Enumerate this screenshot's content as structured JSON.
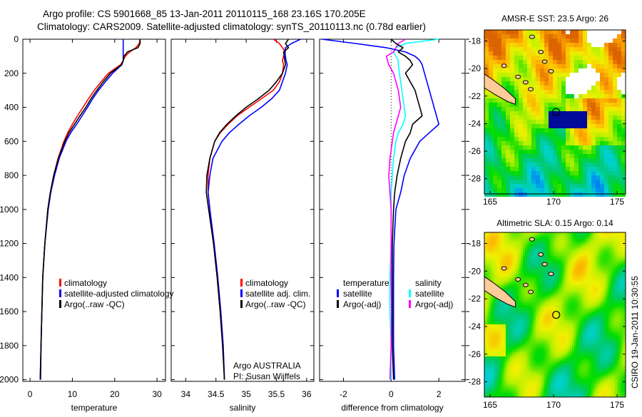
{
  "header": {
    "line1": "Argo profile: CS 5901668_85 13-Jan-2011 20110115_168 23.16S 170.205E",
    "line2": "Climatology: CARS2009. Satellite-adjusted climatology: synTS_20110113.nc (0.78d earlier)"
  },
  "footer_stamp": "CSIRO 19-Jan-2011 10:30:55",
  "colors": {
    "climatology": "#ff0000",
    "satellite": "#0000ff",
    "argo": "#000000",
    "sal_satellite": "#00ffff",
    "sal_argo": "#ff00ff"
  },
  "chart_data": [
    {
      "type": "line",
      "title": "",
      "xlabel": "temperature",
      "ylabel": "",
      "xlim": [
        -1.7,
        32
      ],
      "ylim": [
        2010,
        0
      ],
      "xticks": [
        "0",
        "10",
        "20",
        "30"
      ],
      "yticks": [
        "0",
        "200",
        "400",
        "600",
        "800",
        "1000",
        "1200",
        "1400",
        "1600",
        "1800",
        "2000"
      ],
      "depth": [
        0,
        25,
        50,
        75,
        100,
        125,
        150,
        200,
        250,
        300,
        350,
        400,
        450,
        500,
        550,
        600,
        700,
        800,
        900,
        1000,
        1200,
        1400,
        1600,
        1800,
        2000
      ],
      "series": [
        {
          "name": "climatology",
          "color": "#ff0000",
          "values": [
            26,
            25.8,
            25,
            23.5,
            22.5,
            22,
            21.4,
            18.5,
            16.8,
            15.2,
            13.8,
            12.5,
            11.2,
            10,
            8.9,
            8,
            6.6,
            5.6,
            4.8,
            4.2,
            3.5,
            3,
            2.8,
            2.6,
            2.4
          ]
        },
        {
          "name": "satellite-adjusted climatology",
          "color": "#0000ff",
          "values": [
            22,
            22,
            22,
            22,
            22,
            22,
            21.7,
            19.5,
            17.8,
            16.2,
            14.8,
            13.6,
            12.3,
            11,
            9.6,
            8.5,
            6.9,
            5.8,
            4.9,
            4.3,
            3.5,
            3,
            2.8,
            2.6,
            2.4
          ]
        },
        {
          "name": "Argo(..raw -QC)",
          "color": "#000000",
          "values": [
            26,
            26,
            25.5,
            23,
            22.2,
            22,
            21.6,
            19,
            17.3,
            15.8,
            14.4,
            13.2,
            11.8,
            10.5,
            9.2,
            8.2,
            6.7,
            5.6,
            4.8,
            4.2,
            3.5,
            3,
            2.8,
            2.6,
            2.5
          ]
        }
      ],
      "legend": {
        "position": "lower-right",
        "entries": [
          "climatology",
          "satellite-adjusted climatology",
          "Argo(..raw -QC)"
        ]
      }
    },
    {
      "type": "line",
      "xlabel": "salinity",
      "xlim": [
        33.76,
        36.12
      ],
      "ylim": [
        2010,
        0
      ],
      "xticks": [
        "34",
        "34.5",
        "35",
        "35.5",
        "36"
      ],
      "depth": [
        0,
        25,
        50,
        75,
        100,
        125,
        150,
        200,
        250,
        300,
        350,
        400,
        450,
        500,
        550,
        600,
        700,
        800,
        900,
        1000,
        1200,
        1400,
        1600,
        1800,
        2000
      ],
      "series": [
        {
          "name": "climatology",
          "color": "#ff0000",
          "values": [
            35.45,
            35.55,
            35.6,
            35.65,
            35.62,
            35.6,
            35.62,
            35.6,
            35.55,
            35.45,
            35.25,
            35.05,
            34.85,
            34.7,
            34.57,
            34.48,
            34.4,
            34.37,
            34.37,
            34.4,
            34.47,
            34.53,
            34.58,
            34.62,
            34.64
          ]
        },
        {
          "name": "satellite adj. clim.",
          "color": "#0000ff",
          "values": [
            35.9,
            35.75,
            35.65,
            35.64,
            35.65,
            35.66,
            35.68,
            35.65,
            35.6,
            35.55,
            35.42,
            35.25,
            35.05,
            34.88,
            34.72,
            34.6,
            34.45,
            34.4,
            34.37,
            34.4,
            34.47,
            34.53,
            34.58,
            34.62,
            34.64
          ]
        },
        {
          "name": "Argo(..raw -QC)",
          "color": "#000000",
          "values": [
            35.7,
            35.65,
            35.7,
            35.62,
            35.63,
            35.64,
            35.65,
            35.6,
            35.5,
            35.38,
            35.2,
            35,
            34.83,
            34.68,
            34.56,
            34.48,
            34.4,
            34.35,
            34.34,
            34.38,
            34.46,
            34.52,
            34.57,
            34.61,
            34.64
          ]
        }
      ],
      "legend": {
        "position": "lower-right",
        "entries": [
          "climatology",
          "satellite adj. clim.",
          "Argo(..raw -QC)"
        ]
      },
      "annotations": [
        "Argo AUSTRALIA",
        "PI: Susan Wijffels"
      ]
    },
    {
      "type": "line",
      "xlabel": "difference from climatology",
      "xlim": [
        -3,
        3.1
      ],
      "ylim": [
        2010,
        0
      ],
      "xticks": [
        "-2",
        "0",
        "2"
      ],
      "depth": [
        0,
        25,
        50,
        75,
        100,
        125,
        150,
        200,
        250,
        300,
        350,
        400,
        450,
        500,
        550,
        600,
        700,
        800,
        900,
        1000,
        1200,
        1400,
        1600,
        1800,
        2000
      ],
      "series": [
        {
          "name": "temperature satellite",
          "color": "#0000ff",
          "values": [
            -2.9,
            -1.5,
            -0.2,
            0.6,
            1.0,
            1.2,
            1.3,
            1.4,
            1.5,
            1.6,
            1.7,
            1.8,
            1.9,
            2.0,
            1.6,
            1.2,
            0.8,
            0.55,
            0.4,
            0.2,
            0.12,
            0.1,
            0.1,
            0.1,
            0.15
          ]
        },
        {
          "name": "temperature Argo(-adj)",
          "color": "#000000",
          "values": [
            0,
            0.2,
            0.5,
            0.3,
            0.6,
            0.8,
            0.9,
            0.6,
            0.8,
            1.0,
            1.1,
            1.2,
            1.3,
            0.9,
            0.8,
            0.6,
            0.4,
            0.25,
            0.15,
            0.1,
            0.05,
            0.05,
            0.05,
            0.05,
            0.1
          ]
        },
        {
          "name": "salinity satellite",
          "color": "#00ffff",
          "values": [
            2.0,
            0.6,
            0.2,
            0.1,
            0.2,
            0.3,
            0.3,
            0.35,
            0.4,
            0.45,
            0.5,
            0.55,
            0.6,
            0.5,
            0.3,
            0.2,
            0.1,
            0.05,
            0,
            0,
            0,
            -0.05,
            -0.05,
            0,
            0
          ]
        },
        {
          "name": "salinity Argo(-adj)",
          "color": "#ff00ff",
          "values": [
            0.6,
            0.3,
            0.2,
            0.1,
            -0.2,
            -0.15,
            -0.1,
            0.1,
            0.2,
            0.3,
            0.35,
            0.4,
            0.3,
            0.2,
            0.1,
            0.05,
            -0.05,
            -0.1,
            -0.05,
            0,
            0,
            0,
            0.02,
            0,
            -0.05
          ]
        }
      ],
      "legend": {
        "position": "lower-center",
        "headers": [
          "temperature",
          "salinity"
        ],
        "entries": [
          "satellite",
          "Argo(-adj)",
          "satellite",
          "Argo(-adj)"
        ]
      }
    },
    {
      "type": "heatmap",
      "title": "AMSR-E SST: 23.5 Argo: 26",
      "xlim": [
        164.55,
        175.67
      ],
      "ylim": [
        -29.1,
        -17.2
      ],
      "xticks": [
        "165",
        "170",
        "175"
      ],
      "yticks": [
        "-18",
        "-20",
        "-22",
        "-24",
        "-26",
        "-28"
      ],
      "marker": {
        "lon": 170.205,
        "lat": -23.16
      }
    },
    {
      "type": "heatmap",
      "title": "Altimetric SLA: 0.15 Argo: 0.14",
      "xlim": [
        164.55,
        175.67
      ],
      "ylim": [
        -29.1,
        -17.2
      ],
      "xticks": [
        "165",
        "170",
        "175"
      ],
      "yticks": [
        "-18",
        "-20",
        "-22",
        "-24",
        "-26",
        "-28"
      ],
      "marker": {
        "lon": 170.205,
        "lat": -23.16
      }
    }
  ]
}
